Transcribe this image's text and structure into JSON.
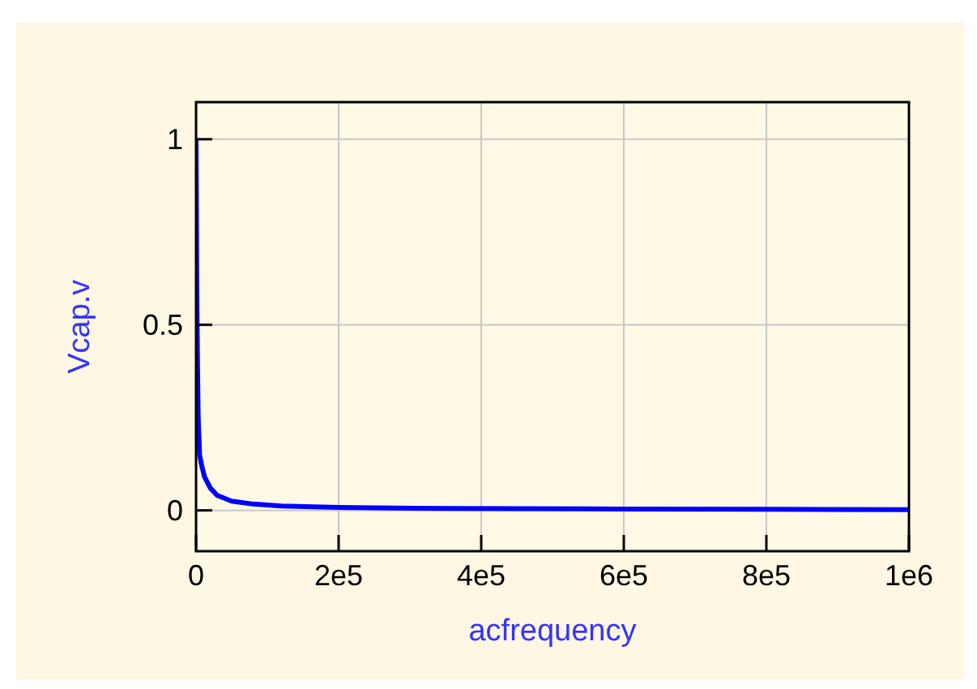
{
  "chart_data": {
    "type": "line",
    "xlabel": "acfrequency",
    "ylabel": "Vcap.v",
    "series": [
      {
        "color": "#0000ff",
        "x": [
          0,
          1000,
          2000,
          3000,
          5000,
          8000,
          12000,
          20000,
          30000,
          50000,
          80000,
          120000,
          200000,
          350000,
          550000,
          800000,
          1000000
        ],
        "values": [
          1,
          0.6,
          0.4,
          0.25,
          0.15,
          0.12,
          0.09,
          0.06,
          0.04,
          0.025,
          0.017,
          0.012,
          0.008,
          0.005,
          0.004,
          0.003,
          0.002
        ]
      }
    ],
    "xlim": [
      0,
      1000000
    ],
    "ylim": [
      -0.11,
      1.1
    ],
    "xticks": [
      0,
      {
        "value": 200000,
        "label": "2e5"
      },
      {
        "value": 400000,
        "label": "4e5"
      },
      {
        "value": 600000,
        "label": "6e5"
      },
      {
        "value": 800000,
        "label": "8e5"
      },
      {
        "value": 1000000,
        "label": "1e6"
      }
    ],
    "yticks": [
      0,
      0.5,
      1
    ],
    "grid": true
  }
}
